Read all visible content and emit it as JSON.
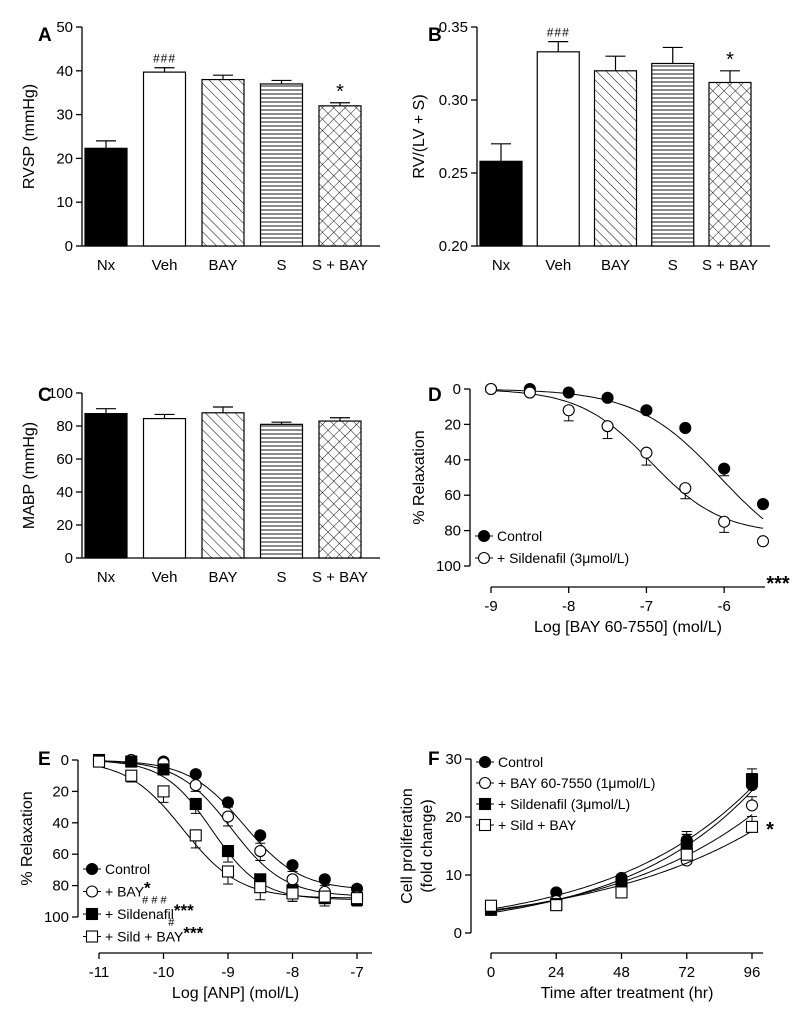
{
  "chart_data": [
    {
      "panel": "A",
      "type": "bar",
      "ylabel": "RVSP (mmHg)",
      "ylim": [
        0,
        50
      ],
      "yticks": [
        0,
        10,
        20,
        30,
        40,
        50
      ],
      "categories": [
        "Nx",
        "Veh",
        "BAY",
        "S",
        "S + BAY"
      ],
      "values": [
        22.3,
        39.7,
        38.0,
        37.0,
        32.0
      ],
      "errors": [
        1.7,
        1.0,
        1.0,
        0.8,
        0.7
      ],
      "annotations": [
        "",
        "###",
        "",
        "",
        "*"
      ],
      "fills": [
        "solid",
        "white",
        "diagonal",
        "horizontal",
        "crosshatch"
      ]
    },
    {
      "panel": "B",
      "type": "bar",
      "ylabel": "RV/(LV + S)",
      "ylim": [
        0.2,
        0.35
      ],
      "yticks": [
        "0.20",
        "0.25",
        "0.30",
        "0.35"
      ],
      "categories": [
        "Nx",
        "Veh",
        "BAY",
        "S",
        "S + BAY"
      ],
      "values": [
        0.258,
        0.333,
        0.32,
        0.325,
        0.312
      ],
      "errors": [
        0.012,
        0.007,
        0.01,
        0.011,
        0.008
      ],
      "annotations": [
        "",
        "###",
        "",
        "",
        "*"
      ],
      "fills": [
        "solid",
        "white",
        "diagonal",
        "horizontal",
        "crosshatch"
      ]
    },
    {
      "panel": "C",
      "type": "bar",
      "ylabel": "MABP (mmHg)",
      "ylim": [
        0,
        100
      ],
      "yticks": [
        0,
        20,
        40,
        60,
        80,
        100
      ],
      "categories": [
        "Nx",
        "Veh",
        "BAY",
        "S",
        "S + BAY"
      ],
      "values": [
        87.5,
        84.5,
        88.0,
        81.0,
        83.0
      ],
      "errors": [
        3.0,
        2.5,
        3.5,
        1.3,
        2.0
      ],
      "annotations": [
        "",
        "",
        "",
        "",
        ""
      ],
      "fills": [
        "solid",
        "white",
        "diagonal",
        "horizontal",
        "crosshatch"
      ]
    },
    {
      "panel": "D",
      "type": "line",
      "xlabel": "Log [BAY 60-7550] (mol/L)",
      "ylabel": "% Relaxation",
      "xlim": [
        -9,
        -5.5
      ],
      "ylim": [
        0,
        100
      ],
      "yreversed": true,
      "xticks": [
        -9,
        -8,
        -7,
        -6
      ],
      "yticks": [
        0,
        20,
        40,
        60,
        80,
        100
      ],
      "legend_position": "bottom-left",
      "x": [
        -9,
        -8.5,
        -8,
        -7.5,
        -7,
        -6.5,
        -6,
        -5.5
      ],
      "series": [
        {
          "name": "Control",
          "marker": "filled-circle",
          "values": [
            0,
            0,
            2,
            5,
            12,
            22,
            45,
            65
          ],
          "errors": [
            0,
            0,
            0,
            0,
            1,
            1,
            4,
            0
          ],
          "fit": {
            "bottom": 100,
            "logEC50": -6.05,
            "hill": 0.8
          },
          "sup": "",
          "sub": ""
        },
        {
          "name": "+ Sildenafil (3μmol/L)",
          "marker": "open-circle",
          "values": [
            0,
            2,
            12,
            21,
            36,
            56,
            75,
            86
          ],
          "errors": [
            0,
            0,
            6,
            7,
            7,
            6,
            6,
            0
          ],
          "fit": {
            "bottom": 82,
            "logEC50": -6.95,
            "hill": 0.95
          },
          "sup": "",
          "sub": ""
        }
      ],
      "annotations": [
        "***"
      ]
    },
    {
      "panel": "E",
      "type": "line",
      "xlabel": "Log [ANP] (mol/L)",
      "ylabel": "% Relaxation",
      "xlim": [
        -11,
        -7
      ],
      "ylim": [
        0,
        100
      ],
      "yreversed": true,
      "xticks": [
        -11,
        -10,
        -9,
        -8,
        -7
      ],
      "yticks": [
        0,
        20,
        40,
        60,
        80,
        100
      ],
      "legend_position": "bottom-left",
      "x": [
        -11,
        -10.5,
        -10,
        -9.5,
        -9,
        -8.5,
        -8,
        -7.5,
        -7
      ],
      "series": [
        {
          "name": "Control",
          "marker": "filled-circle",
          "values": [
            0,
            0,
            1,
            9,
            27,
            48,
            67,
            76,
            82
          ],
          "errors": [
            0,
            0,
            0,
            1,
            3,
            5,
            4,
            4,
            3
          ],
          "fit": {
            "bottom": 83,
            "logEC50": -8.75,
            "hill": 1.0
          },
          "sup": "",
          "sub": ""
        },
        {
          "name": "+ BAY",
          "marker": "open-circle",
          "values": [
            0,
            0,
            2,
            16,
            36,
            58,
            76,
            84,
            87
          ],
          "errors": [
            0,
            0,
            0,
            4,
            6,
            6,
            3,
            3,
            3
          ],
          "fit": {
            "bottom": 87,
            "logEC50": -8.95,
            "hill": 1.05
          },
          "sup": "*",
          "sub": "###"
        },
        {
          "name": "+ Sildenafil",
          "marker": "filled-square",
          "values": [
            0,
            1,
            6,
            28,
            58,
            76,
            83,
            88,
            89
          ],
          "errors": [
            0,
            0,
            0,
            6,
            7,
            4,
            7,
            5,
            4
          ],
          "fit": {
            "bottom": 89,
            "logEC50": -9.25,
            "hill": 1.15
          },
          "sup": "***",
          "sub": "#"
        },
        {
          "name": "+ Sild + BAY",
          "marker": "open-square",
          "values": [
            1,
            10,
            20,
            48,
            71,
            81,
            85,
            87,
            88
          ],
          "errors": [
            0,
            4,
            7,
            8,
            8,
            8,
            5,
            4,
            3
          ],
          "fit": {
            "bottom": 88,
            "logEC50": -9.7,
            "hill": 1.0
          },
          "sup": "***",
          "sub": ""
        }
      ]
    },
    {
      "panel": "F",
      "type": "line",
      "xlabel": "Time after treatment (hr)",
      "ylabel": [
        "Cell proliferation",
        "(fold change)"
      ],
      "xlim": [
        0,
        96
      ],
      "ylim": [
        0,
        30
      ],
      "yreversed": false,
      "xticks": [
        0,
        24,
        48,
        72,
        96
      ],
      "yticks": [
        0,
        10,
        20,
        30
      ],
      "legend_position": "top-left",
      "x": [
        0,
        24,
        48,
        72,
        96
      ],
      "series": [
        {
          "name": "Control",
          "marker": "filled-circle",
          "values": [
            4.0,
            7.0,
            9.5,
            16.0,
            25.5
          ],
          "errors": [
            0,
            0,
            0.6,
            1.5,
            2.0
          ],
          "sup": "",
          "sub": ""
        },
        {
          "name": "+ BAY 60-7550 (1μmol/L)",
          "marker": "open-circle",
          "values": [
            4.0,
            5.5,
            8.5,
            12.5,
            22.0
          ],
          "errors": [
            0,
            0,
            0.5,
            3.0,
            1.5
          ],
          "sup": "",
          "sub": ""
        },
        {
          "name": "+ Sildenafil (3μmol/L)",
          "marker": "filled-square",
          "values": [
            4.0,
            5.0,
            8.5,
            15.0,
            26.5
          ],
          "errors": [
            0,
            0,
            0.5,
            2.0,
            1.8
          ],
          "sup": "",
          "sub": ""
        },
        {
          "name": "+ Sild + BAY",
          "marker": "open-square",
          "values": [
            4.7,
            4.8,
            7.0,
            13.5,
            18.3
          ],
          "errors": [
            0,
            0,
            1.5,
            3.5,
            1.8
          ],
          "sup": "",
          "sub": ""
        }
      ],
      "annotations": [
        "*"
      ]
    }
  ]
}
